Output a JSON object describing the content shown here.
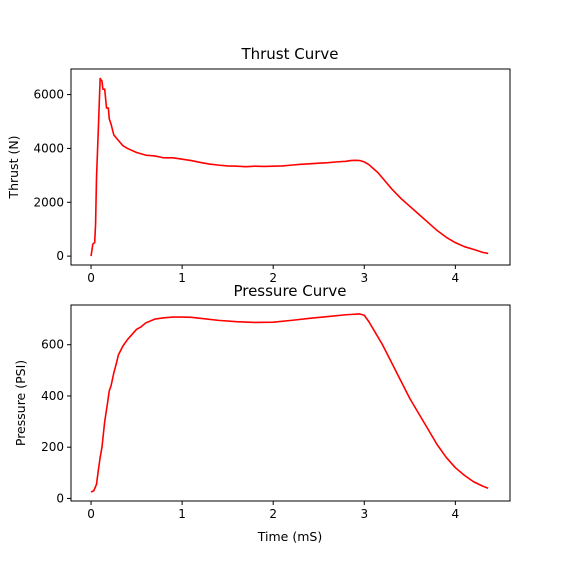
{
  "chart_data": [
    {
      "type": "line",
      "title": "Thrust Curve",
      "xlabel": "",
      "ylabel": "Thrust (N)",
      "xlim": [
        -0.22,
        4.6
      ],
      "ylim": [
        -330,
        6950
      ],
      "xticks": [
        0,
        1,
        2,
        3,
        4
      ],
      "yticks": [
        0,
        2000,
        4000,
        6000
      ],
      "xtick_labels": [
        "0",
        "1",
        "2",
        "3",
        "4"
      ],
      "ytick_labels": [
        "0",
        "2000",
        "4000",
        "6000"
      ],
      "grid": false,
      "color": "#ff0000",
      "series": [
        {
          "x": [
            0,
            0.02,
            0.04,
            0.05,
            0.06,
            0.08,
            0.1,
            0.12,
            0.13,
            0.15,
            0.17,
            0.19,
            0.2,
            0.22,
            0.25,
            0.3,
            0.35,
            0.4,
            0.5,
            0.6,
            0.7,
            0.8,
            0.9,
            1.0,
            1.1,
            1.2,
            1.3,
            1.4,
            1.5,
            1.6,
            1.7,
            1.8,
            1.9,
            2.0,
            2.1,
            2.2,
            2.3,
            2.4,
            2.5,
            2.6,
            2.7,
            2.8,
            2.85,
            2.9,
            2.95,
            3.0,
            3.05,
            3.1,
            3.15,
            3.2,
            3.25,
            3.3,
            3.4,
            3.5,
            3.6,
            3.7,
            3.8,
            3.9,
            4.0,
            4.1,
            4.2,
            4.3,
            4.36
          ],
          "y": [
            0,
            450,
            500,
            1200,
            2900,
            4700,
            6600,
            6500,
            6200,
            6200,
            5500,
            5500,
            5100,
            4900,
            4500,
            4300,
            4100,
            4000,
            3850,
            3750,
            3720,
            3650,
            3650,
            3600,
            3550,
            3480,
            3420,
            3380,
            3350,
            3340,
            3320,
            3340,
            3330,
            3340,
            3350,
            3380,
            3410,
            3430,
            3450,
            3470,
            3500,
            3520,
            3550,
            3560,
            3550,
            3500,
            3400,
            3250,
            3100,
            2900,
            2700,
            2500,
            2150,
            1850,
            1550,
            1250,
            950,
            700,
            500,
            350,
            250,
            140,
            100
          ]
        }
      ]
    },
    {
      "type": "line",
      "title": "Pressure Curve",
      "xlabel": "Time (mS)",
      "ylabel": "Pressure (PSI)",
      "xlim": [
        -0.22,
        4.6
      ],
      "ylim": [
        -10,
        755
      ],
      "xticks": [
        0,
        1,
        2,
        3,
        4
      ],
      "yticks": [
        0,
        200,
        400,
        600
      ],
      "xtick_labels": [
        "0",
        "1",
        "2",
        "3",
        "4"
      ],
      "ytick_labels": [
        "0",
        "200",
        "400",
        "600"
      ],
      "grid": false,
      "color": "#ff0000",
      "series": [
        {
          "x": [
            0,
            0.03,
            0.06,
            0.08,
            0.1,
            0.12,
            0.15,
            0.18,
            0.2,
            0.22,
            0.25,
            0.28,
            0.3,
            0.35,
            0.4,
            0.45,
            0.5,
            0.55,
            0.6,
            0.7,
            0.8,
            0.9,
            1.0,
            1.1,
            1.2,
            1.4,
            1.6,
            1.8,
            2.0,
            2.2,
            2.4,
            2.6,
            2.8,
            2.95,
            3.0,
            3.05,
            3.1,
            3.2,
            3.3,
            3.4,
            3.5,
            3.6,
            3.7,
            3.8,
            3.9,
            4.0,
            4.1,
            4.2,
            4.3,
            4.36
          ],
          "y": [
            25,
            30,
            55,
            110,
            160,
            200,
            300,
            370,
            420,
            440,
            490,
            530,
            560,
            595,
            620,
            640,
            660,
            670,
            685,
            700,
            705,
            708,
            708,
            707,
            703,
            695,
            690,
            687,
            688,
            695,
            703,
            710,
            717,
            720,
            715,
            690,
            660,
            600,
            530,
            460,
            390,
            330,
            270,
            210,
            160,
            120,
            90,
            65,
            48,
            40
          ]
        }
      ]
    }
  ]
}
